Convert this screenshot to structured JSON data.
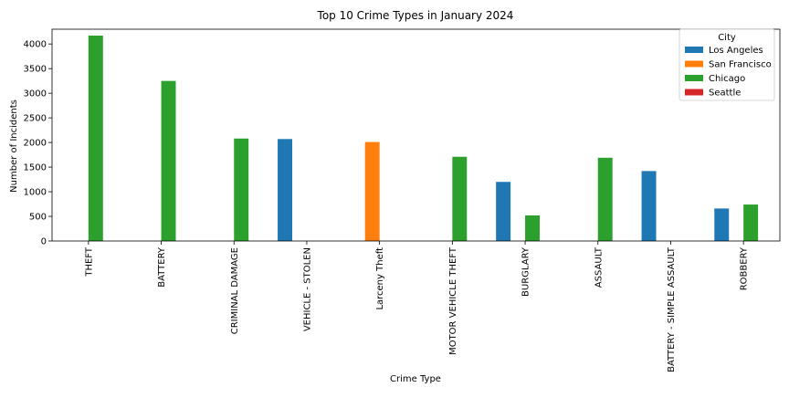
{
  "chart_data": {
    "type": "bar",
    "title": "Top 10 Crime Types in January 2024",
    "xlabel": "Crime Type",
    "ylabel": "Number of Incidents",
    "ylim": [
      0,
      4300
    ],
    "yticks": [
      0,
      500,
      1000,
      1500,
      2000,
      2500,
      3000,
      3500,
      4000
    ],
    "grid": false,
    "legend": {
      "title": "City",
      "position": "top-right"
    },
    "categories": [
      "THEFT",
      "BATTERY",
      "CRIMINAL DAMAGE",
      "VEHICLE - STOLEN",
      "Larceny Theft",
      "MOTOR VEHICLE THEFT",
      "BURGLARY",
      "ASSAULT",
      "BATTERY - SIMPLE ASSAULT",
      "ROBBERY"
    ],
    "series": [
      {
        "name": "Los Angeles",
        "color": "#1f77b4",
        "values": [
          null,
          null,
          null,
          2070,
          null,
          null,
          1200,
          null,
          1420,
          660
        ]
      },
      {
        "name": "San Francisco",
        "color": "#ff7f0e",
        "values": [
          null,
          null,
          null,
          null,
          2010,
          null,
          null,
          null,
          null,
          null
        ]
      },
      {
        "name": "Chicago",
        "color": "#2ca02c",
        "values": [
          4170,
          3250,
          2080,
          null,
          null,
          1710,
          520,
          1690,
          null,
          740
        ]
      },
      {
        "name": "Seattle",
        "color": "#d62728",
        "values": [
          null,
          null,
          null,
          null,
          null,
          null,
          null,
          null,
          null,
          null
        ]
      }
    ]
  }
}
